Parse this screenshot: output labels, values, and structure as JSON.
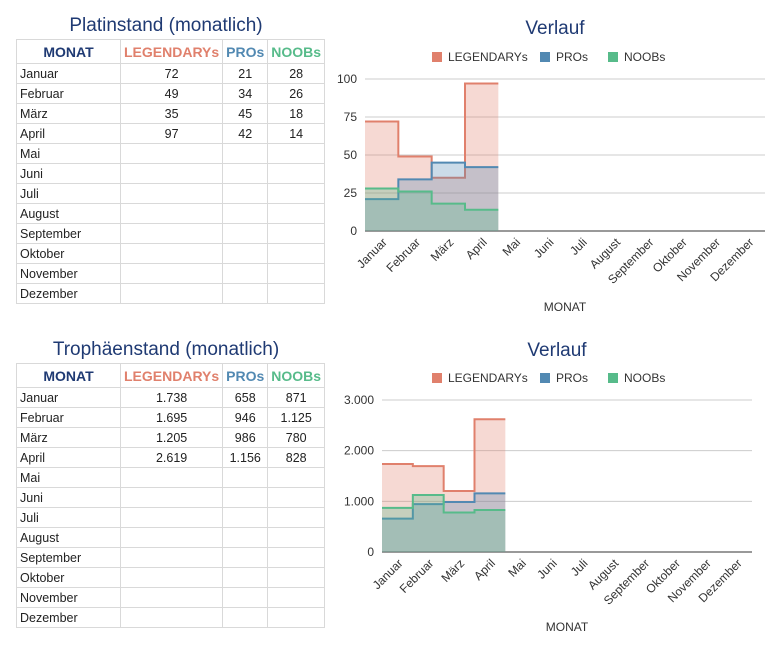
{
  "tables": [
    {
      "title": "Platinstand (monatlich)",
      "headers": [
        "MONAT",
        "LEGENDARYs",
        "PROs",
        "NOOBs"
      ],
      "rows": [
        [
          "Januar",
          "72",
          "21",
          "28"
        ],
        [
          "Februar",
          "49",
          "34",
          "26"
        ],
        [
          "März",
          "35",
          "45",
          "18"
        ],
        [
          "April",
          "97",
          "42",
          "14"
        ],
        [
          "Mai",
          "",
          "",
          ""
        ],
        [
          "Juni",
          "",
          "",
          ""
        ],
        [
          "Juli",
          "",
          "",
          ""
        ],
        [
          "August",
          "",
          "",
          ""
        ],
        [
          "September",
          "",
          "",
          ""
        ],
        [
          "Oktober",
          "",
          "",
          ""
        ],
        [
          "November",
          "",
          "",
          ""
        ],
        [
          "Dezember",
          "",
          "",
          ""
        ]
      ]
    },
    {
      "title": "Trophäenstand (monatlich)",
      "headers": [
        "MONAT",
        "LEGENDARYs",
        "PROs",
        "NOOBs"
      ],
      "rows": [
        [
          "Januar",
          "1.738",
          "658",
          "871"
        ],
        [
          "Februar",
          "1.695",
          "946",
          "1.125"
        ],
        [
          "März",
          "1.205",
          "986",
          "780"
        ],
        [
          "April",
          "2.619",
          "1.156",
          "828"
        ],
        [
          "Mai",
          "",
          "",
          ""
        ],
        [
          "Juni",
          "",
          "",
          ""
        ],
        [
          "Juli",
          "",
          "",
          ""
        ],
        [
          "August",
          "",
          "",
          ""
        ],
        [
          "September",
          "",
          "",
          ""
        ],
        [
          "Oktober",
          "",
          "",
          ""
        ],
        [
          "November",
          "",
          "",
          ""
        ],
        [
          "Dezember",
          "",
          "",
          ""
        ]
      ]
    }
  ],
  "colors": {
    "legendary": "#e0806c",
    "pro": "#5289b2",
    "noob": "#57bb8a",
    "title": "#1f3a73"
  },
  "chart_data": [
    {
      "type": "area",
      "title": "Verlauf",
      "xlabel": "MONAT",
      "ylabel": "",
      "categories": [
        "Januar",
        "Februar",
        "März",
        "April",
        "Mai",
        "Juni",
        "Juli",
        "August",
        "September",
        "Oktober",
        "November",
        "Dezember"
      ],
      "series": [
        {
          "name": "LEGENDARYs",
          "values": [
            72,
            49,
            35,
            97,
            null,
            null,
            null,
            null,
            null,
            null,
            null,
            null
          ]
        },
        {
          "name": "PROs",
          "values": [
            21,
            34,
            45,
            42,
            null,
            null,
            null,
            null,
            null,
            null,
            null,
            null
          ]
        },
        {
          "name": "NOOBs",
          "values": [
            28,
            26,
            18,
            14,
            null,
            null,
            null,
            null,
            null,
            null,
            null,
            null
          ]
        }
      ],
      "ylim": [
        0,
        100
      ],
      "yticks": [
        0,
        25,
        50,
        75,
        100
      ],
      "ytick_labels": [
        "0",
        "25",
        "50",
        "75",
        "100"
      ],
      "legend": "top",
      "grid": true,
      "step": true
    },
    {
      "type": "area",
      "title": "Verlauf",
      "xlabel": "MONAT",
      "ylabel": "",
      "categories": [
        "Januar",
        "Februar",
        "März",
        "April",
        "Mai",
        "Juni",
        "Juli",
        "August",
        "September",
        "Oktober",
        "November",
        "Dezember"
      ],
      "series": [
        {
          "name": "LEGENDARYs",
          "values": [
            1738,
            1695,
            1205,
            2619,
            null,
            null,
            null,
            null,
            null,
            null,
            null,
            null
          ]
        },
        {
          "name": "PROs",
          "values": [
            658,
            946,
            986,
            1156,
            null,
            null,
            null,
            null,
            null,
            null,
            null,
            null
          ]
        },
        {
          "name": "NOOBs",
          "values": [
            871,
            1125,
            780,
            828,
            null,
            null,
            null,
            null,
            null,
            null,
            null,
            null
          ]
        }
      ],
      "ylim": [
        0,
        3000
      ],
      "yticks": [
        0,
        1000,
        2000,
        3000
      ],
      "ytick_labels": [
        "0",
        "1.000",
        "2.000",
        "3.000"
      ],
      "legend": "top",
      "grid": true,
      "step": true
    }
  ]
}
